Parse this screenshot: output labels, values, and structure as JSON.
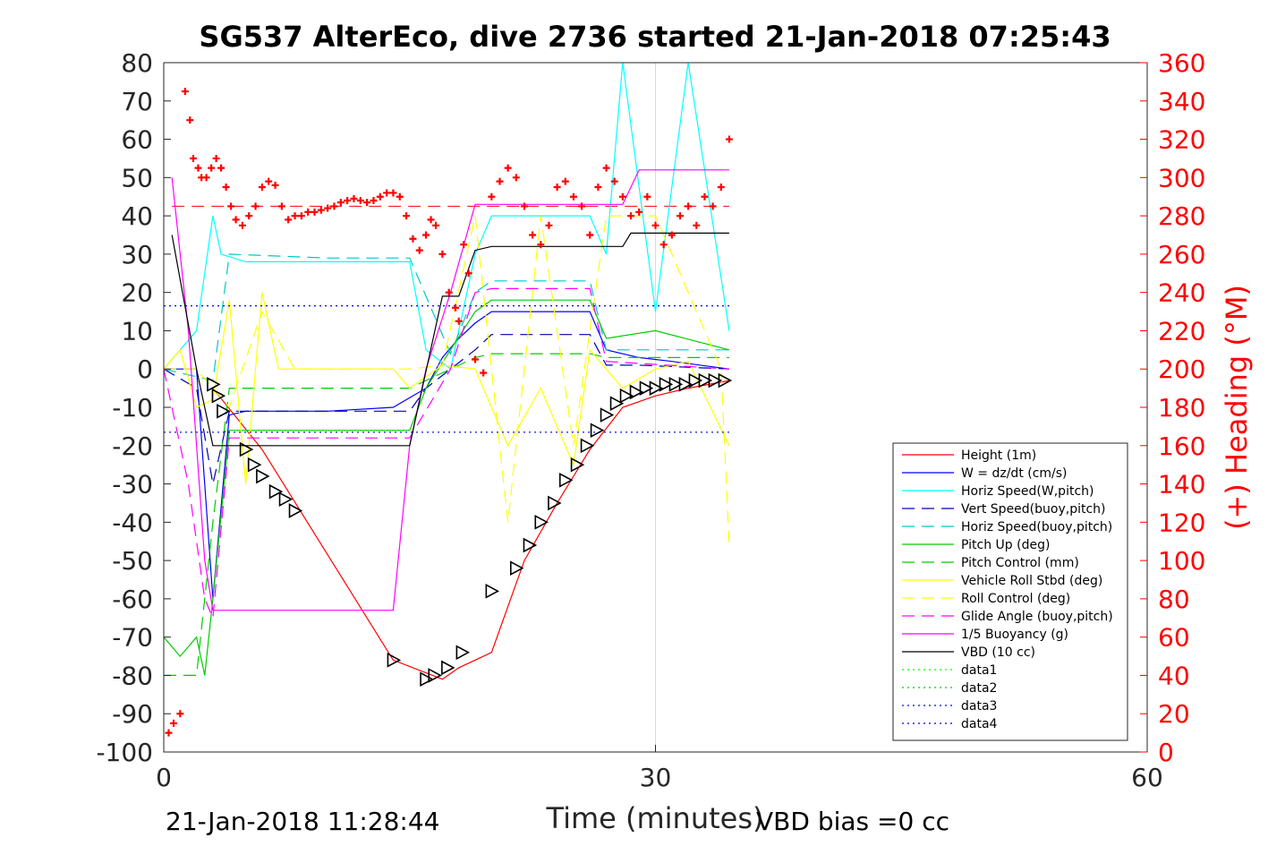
{
  "chart_data": {
    "type": "line",
    "title": "SG537 AlterEco, dive 2736 started 21-Jan-2018 07:25:43",
    "xlabel": "Time (minutes)",
    "ylabel": "",
    "y2label": "(+) Heading (°M)",
    "xlim": [
      0,
      60
    ],
    "ylim": [
      -100,
      80
    ],
    "y2lim": [
      0,
      360
    ],
    "xticks": [
      "0",
      "30",
      "60"
    ],
    "yticks": [
      "80",
      "70",
      "60",
      "50",
      "40",
      "30",
      "20",
      "10",
      "0",
      "-10",
      "-20",
      "-30",
      "-40",
      "-50",
      "-60",
      "-70",
      "-80",
      "-90",
      "-100"
    ],
    "y2ticks": [
      "360",
      "340",
      "320",
      "300",
      "280",
      "260",
      "240",
      "220",
      "200",
      "180",
      "160",
      "140",
      "120",
      "100",
      "80",
      "60",
      "40",
      "20",
      "0"
    ],
    "grid": "vertical-at-30",
    "legend_position": "bottom-right inside",
    "footer_left": "21-Jan-2018 11:28:44",
    "footer_right": "VBD bias =0 cc",
    "series": [
      {
        "name": "Height (1m)",
        "color": "#ff0000",
        "style": "solid",
        "x": [
          3,
          6,
          14,
          17,
          18,
          20,
          22,
          24,
          26,
          28,
          30,
          32,
          34.5
        ],
        "y": [
          -5,
          -21,
          -76,
          -81,
          -78,
          -74,
          -50,
          -35,
          -21,
          -10,
          -7,
          -5,
          -3
        ]
      },
      {
        "name": "W = dz/dt (cm/s)",
        "color": "#0000ff",
        "style": "solid",
        "x": [
          0,
          2,
          3,
          4,
          5,
          10,
          14,
          16,
          17,
          18,
          19,
          20,
          26,
          27,
          29,
          31,
          34.5
        ],
        "y": [
          0,
          0,
          -60,
          -12,
          -11,
          -11,
          -10,
          -5,
          3,
          8,
          12,
          15,
          15,
          5,
          3,
          2,
          0
        ]
      },
      {
        "name": "Horiz Speed(W,pitch)",
        "color": "#00ffff",
        "style": "solid",
        "x": [
          0,
          2,
          3,
          3.5,
          5,
          10,
          15,
          16,
          17.5,
          19,
          20,
          26,
          27,
          28,
          30,
          32,
          34.5
        ],
        "y": [
          0,
          10,
          40,
          30,
          28,
          28,
          28,
          5,
          0,
          30,
          40,
          40,
          30,
          80,
          15,
          80,
          10
        ]
      },
      {
        "name": "Vert Speed(buoy,pitch)",
        "color": "#0000b0",
        "style": "dashed",
        "x": [
          0,
          2,
          3,
          4,
          10,
          15,
          16,
          17.5,
          19,
          20,
          26,
          27,
          29,
          34.5
        ],
        "y": [
          0,
          -5,
          -30,
          -11,
          -11,
          -11,
          -5,
          0,
          5,
          9,
          9,
          1,
          1,
          0
        ]
      },
      {
        "name": "Horiz Speed(buoy,pitch)",
        "color": "#00c8c8",
        "style": "dashed",
        "x": [
          0,
          3,
          4,
          10,
          15,
          17.5,
          19,
          20,
          26,
          27,
          30,
          34.5
        ],
        "y": [
          0,
          -3,
          30,
          29,
          29,
          4,
          20,
          23,
          23,
          5,
          5,
          5
        ]
      },
      {
        "name": "Pitch Up (deg)",
        "color": "#00cc00",
        "style": "solid",
        "x": [
          0,
          1,
          2,
          2.5,
          3,
          4,
          10,
          15,
          16,
          17.5,
          19,
          20,
          26,
          27,
          30,
          34.5
        ],
        "y": [
          -70,
          -75,
          -70,
          -80,
          -60,
          -16,
          -16,
          -16,
          -5,
          5,
          15,
          18,
          18,
          8,
          10,
          5
        ]
      },
      {
        "name": "Pitch Control (mm)",
        "color": "#00cc00",
        "style": "dashed",
        "x": [
          0,
          2,
          3,
          4,
          10,
          15,
          17.5,
          19,
          20,
          26,
          27,
          34.5
        ],
        "y": [
          -80,
          -80,
          -40,
          -5,
          -5,
          -5,
          0,
          3,
          4,
          4,
          3,
          3
        ]
      },
      {
        "name": "Vehicle Roll Stbd (deg)",
        "color": "#ffff00",
        "style": "solid",
        "x": [
          0,
          1,
          2,
          3,
          4,
          5,
          6,
          7,
          8,
          10,
          14,
          15,
          17,
          19,
          21,
          23,
          25,
          26,
          28,
          30,
          32,
          34.5
        ],
        "y": [
          0,
          5,
          -10,
          -8,
          18,
          -30,
          20,
          0,
          0,
          0,
          0,
          -5,
          1,
          0,
          -20,
          -5,
          -25,
          5,
          -5,
          0,
          2,
          -20
        ]
      },
      {
        "name": "Roll Control (deg)",
        "color": "#ffff00",
        "style": "dashed",
        "x": [
          0,
          2,
          4,
          6,
          8,
          10,
          15,
          17,
          19,
          21,
          23,
          25,
          27,
          30,
          34,
          34.5
        ],
        "y": [
          0,
          0,
          -10,
          15,
          0,
          0,
          0,
          1,
          40,
          -40,
          40,
          -20,
          40,
          40,
          0,
          -46
        ]
      },
      {
        "name": "Glide Angle (buoy,pitch)",
        "color": "#ff00ff",
        "style": "dashed",
        "x": [
          0,
          1.5,
          2.5,
          3,
          4,
          10,
          15,
          17.5,
          19,
          20,
          26,
          27,
          34.5
        ],
        "y": [
          0,
          -30,
          -60,
          -65,
          -18,
          -18,
          -18,
          0,
          20,
          21,
          21,
          2,
          0
        ]
      },
      {
        "name": "1/5 Buoyancy (g)",
        "color": "#ff00ff",
        "style": "solid",
        "x": [
          0.5,
          1.5,
          2.5,
          3,
          10,
          14,
          15,
          16,
          17.5,
          19,
          28,
          29,
          34.5
        ],
        "y": [
          50,
          10,
          -50,
          -63,
          -63,
          -63,
          -20,
          0,
          20,
          43,
          43,
          52,
          52
        ]
      },
      {
        "name": "VBD (10 cc)",
        "color": "#000000",
        "style": "solid",
        "x": [
          0.5,
          2,
          3,
          7,
          14,
          15,
          17,
          18,
          19,
          20,
          28,
          28.5,
          34.5
        ],
        "y": [
          35,
          0,
          -20,
          -20,
          -20,
          -20,
          19,
          19,
          31,
          32,
          32,
          35.5,
          35.5
        ]
      },
      {
        "name": "data1",
        "color": "#00ff00",
        "style": "dotted",
        "x": [],
        "y": []
      },
      {
        "name": "data2",
        "color": "#00cc00",
        "style": "dotted",
        "x": [],
        "y": []
      },
      {
        "name": "data3",
        "color": "#0000ff",
        "style": "dotted",
        "x": [
          0,
          34.5
        ],
        "y": [
          16.5,
          16.5
        ]
      },
      {
        "name": "data4",
        "color": "#0000cc",
        "style": "dotted",
        "x": [
          0,
          34.5
        ],
        "y": [
          -16.5,
          -16.5
        ]
      }
    ],
    "heading_reference": {
      "value": 285,
      "color": "#ff0000",
      "style": "dashed"
    },
    "heading_points": {
      "marker": "+",
      "color": "#ff0000",
      "x": [
        0.3,
        0.6,
        1.0,
        1.3,
        1.6,
        1.8,
        2.1,
        2.3,
        2.6,
        2.9,
        3.2,
        3.5,
        3.8,
        4.1,
        4.4,
        4.8,
        5.2,
        5.6,
        6.0,
        6.4,
        6.8,
        7.2,
        7.6,
        8.0,
        8.4,
        8.8,
        9.2,
        9.6,
        10.0,
        10.4,
        10.8,
        11.2,
        11.6,
        12.0,
        12.4,
        12.8,
        13.2,
        13.6,
        14.0,
        14.4,
        14.8,
        15.2,
        15.6,
        16.0,
        16.3,
        16.6,
        17.0,
        17.4,
        17.8,
        18.0,
        18.3,
        18.6,
        19.0,
        19.5,
        20.0,
        20.5,
        21.0,
        21.5,
        22.0,
        22.5,
        23.0,
        23.5,
        24.0,
        24.5,
        25.0,
        25.5,
        26.0,
        26.5,
        27.0,
        27.5,
        28.0,
        28.5,
        29.0,
        29.5,
        30.0,
        30.5,
        31.0,
        31.5,
        32.0,
        32.5,
        33.0,
        33.5,
        34.0,
        34.5
      ],
      "y": [
        10,
        15,
        20,
        345,
        330,
        310,
        305,
        300,
        300,
        305,
        310,
        305,
        295,
        285,
        278,
        275,
        280,
        285,
        295,
        298,
        296,
        285,
        278,
        280,
        280,
        282,
        282,
        283,
        284,
        285,
        287,
        288,
        289,
        288,
        287,
        288,
        290,
        292,
        292,
        290,
        280,
        268,
        262,
        270,
        278,
        275,
        260,
        240,
        232,
        225,
        265,
        250,
        205,
        198,
        290,
        298,
        305,
        300,
        285,
        270,
        265,
        275,
        295,
        298,
        290,
        285,
        270,
        295,
        305,
        298,
        290,
        280,
        282,
        290,
        275,
        265,
        270,
        280,
        285,
        275,
        290,
        285,
        295,
        320
      ]
    },
    "depth_markers": {
      "marker": "triangle",
      "color": "#000000",
      "x": [
        3,
        3.3,
        3.6,
        5.0,
        5.5,
        6.0,
        6.8,
        7.4,
        8.0,
        14.0,
        16.0,
        16.5,
        17.3,
        18.2,
        20.0,
        21.5,
        22.3,
        23.0,
        23.8,
        24.5,
        25.2,
        25.8,
        26.4,
        27.0,
        27.6,
        28.2,
        28.8,
        29.4,
        30.0,
        30.6,
        31.2,
        31.8,
        32.4,
        33.0,
        33.6,
        34.2
      ],
      "y": [
        -4,
        -7,
        -11,
        -21,
        -25,
        -28,
        -32,
        -34,
        -37,
        -76,
        -81,
        -80,
        -78,
        -74,
        -58,
        -52,
        -46,
        -40,
        -35,
        -29,
        -25,
        -20,
        -16,
        -12,
        -9,
        -7,
        -6,
        -5,
        -5,
        -4,
        -4,
        -4,
        -3,
        -3,
        -3,
        -3
      ]
    }
  }
}
